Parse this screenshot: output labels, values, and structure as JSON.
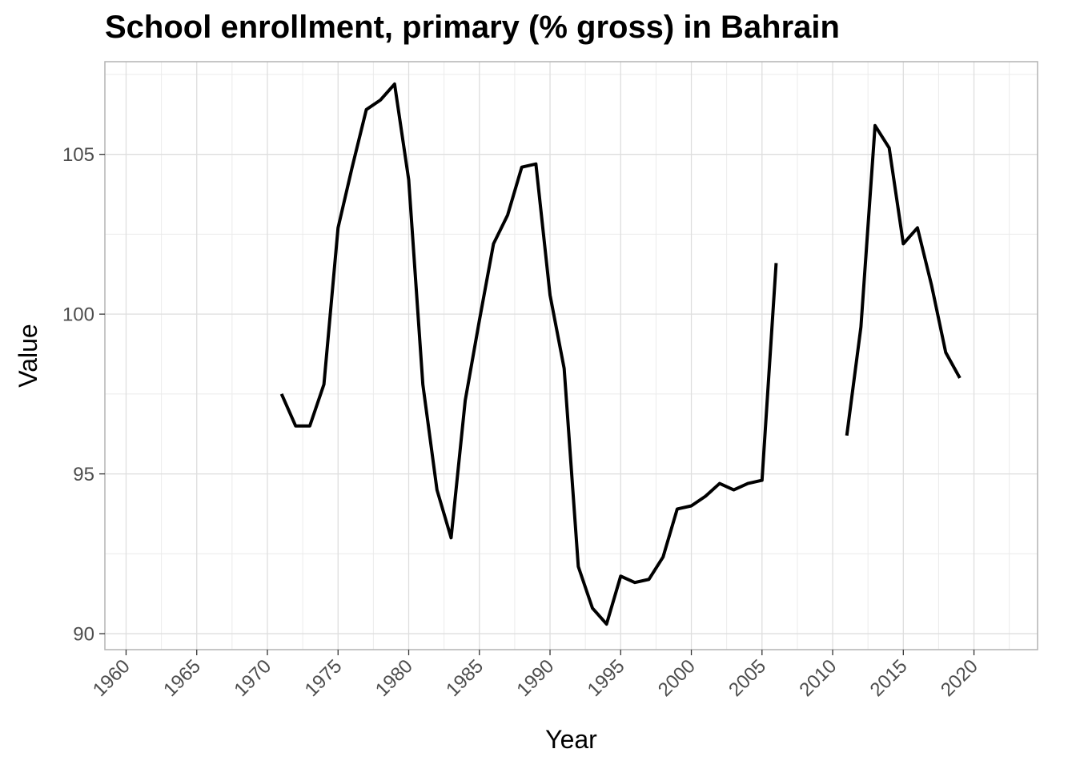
{
  "chart_data": {
    "type": "line",
    "title": "School enrollment, primary (% gross) in Bahrain",
    "xlabel": "Year",
    "ylabel": "Value",
    "xlim": [
      1958.5,
      2024.5
    ],
    "ylim": [
      89.5,
      107.9
    ],
    "x_ticks": [
      1960,
      1965,
      1970,
      1975,
      1980,
      1985,
      1990,
      1995,
      2000,
      2005,
      2010,
      2015,
      2020
    ],
    "x_tick_labels": [
      "1960",
      "1965",
      "1970",
      "1975",
      "1980",
      "1985",
      "1990",
      "1995",
      "2000",
      "2005",
      "2010",
      "2015",
      "2020"
    ],
    "y_ticks": [
      90,
      95,
      100,
      105
    ],
    "y_tick_labels": [
      "90",
      "95",
      "100",
      "105"
    ],
    "grid": true,
    "line_color": "#000000",
    "series": [
      {
        "segments": [
          {
            "x": [
              1971,
              1972,
              1973,
              1974,
              1975,
              1976,
              1977,
              1978,
              1979,
              1980,
              1981,
              1982,
              1983,
              1984,
              1985,
              1986,
              1987,
              1988,
              1989,
              1990,
              1991,
              1992,
              1993,
              1994,
              1995,
              1996,
              1997,
              1998,
              1999,
              2000,
              2001,
              2002,
              2003,
              2004,
              2005,
              2006
            ],
            "y": [
              97.5,
              96.5,
              96.5,
              97.8,
              102.7,
              104.6,
              106.4,
              106.7,
              107.2,
              104.2,
              97.8,
              94.5,
              93.0,
              97.3,
              99.8,
              102.2,
              103.1,
              104.6,
              104.7,
              100.6,
              98.3,
              92.1,
              90.8,
              90.3,
              91.8,
              91.6,
              91.7,
              92.4,
              93.9,
              94.0,
              94.3,
              94.7,
              94.5,
              94.7,
              94.8,
              101.6
            ]
          },
          {
            "x": [
              2011,
              2012,
              2013,
              2014,
              2015,
              2016,
              2017,
              2018,
              2019
            ],
            "y": [
              96.2,
              99.6,
              105.9,
              105.2,
              102.2,
              102.7,
              100.9,
              98.8,
              98.0
            ]
          }
        ]
      }
    ]
  }
}
